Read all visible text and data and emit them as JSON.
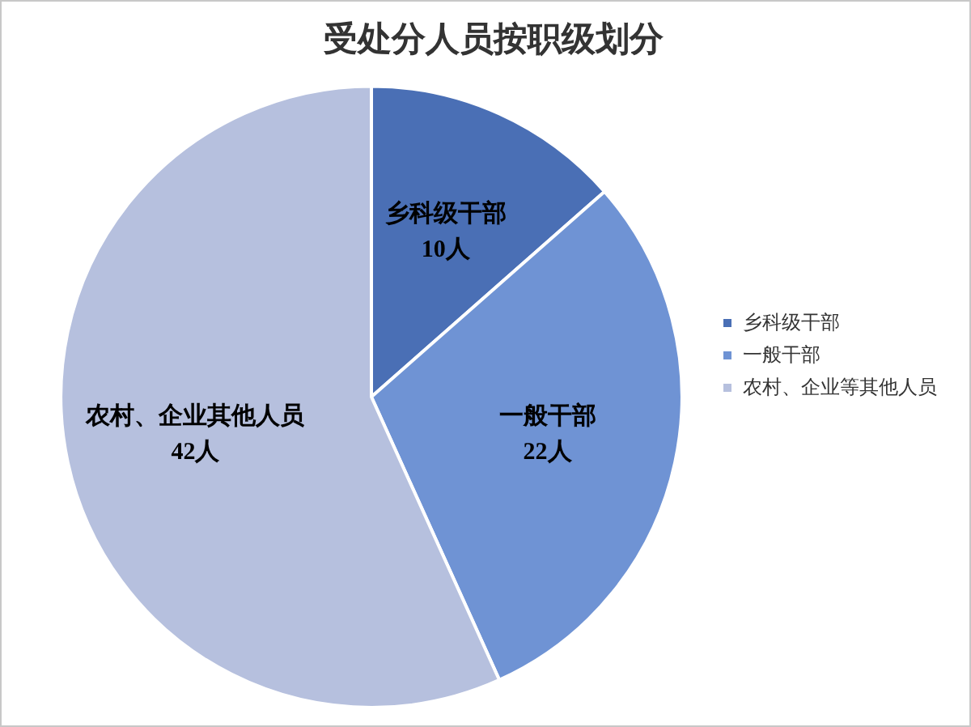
{
  "chart_data": {
    "type": "pie",
    "title": "受处分人员按职级划分",
    "categories": [
      "乡科级干部",
      "一般干部",
      "农村、企业等其他人员"
    ],
    "values": [
      10,
      22,
      42
    ],
    "colors": [
      "#4a6fb5",
      "#6f93d4",
      "#b6c0de"
    ],
    "value_labels": [
      "乡科级干部\n10人",
      "一般干部\n22人",
      "农村、企业其他人员\n42人"
    ],
    "legend": "right"
  }
}
